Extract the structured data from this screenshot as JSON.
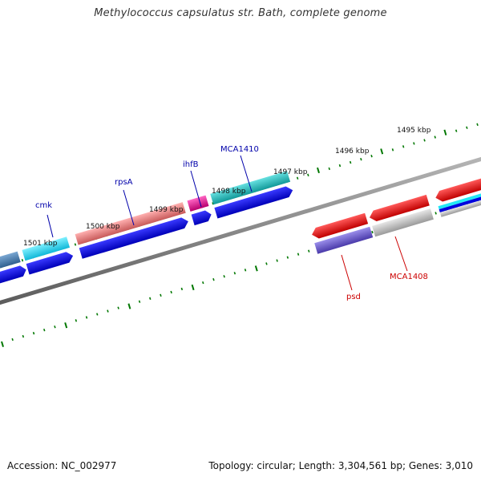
{
  "title": "Methylococcus capsulatus str. Bath, complete genome",
  "footer": {
    "accession": "Accession: NC_002977",
    "summary": "Topology: circular; Length: 3,304,561 bp; Genes: 3,010"
  },
  "kbp_labels": [
    "1501 kbp",
    "1500 kbp",
    "1499 kbp",
    "1498 kbp",
    "1497 kbp",
    "1496 kbp",
    "1495 kbp"
  ],
  "gene_labels": [
    "cmk",
    "rpsA",
    "ihfB",
    "MCA1410",
    "psd",
    "MCA1408"
  ],
  "colors": {
    "forward_label": "#0000aa",
    "reverse_label": "#cc0000",
    "backbone": "#808080",
    "tick": "#007700",
    "cds_blue": "#0000ee",
    "gene_cyan": "#2ad6f0",
    "gene_teal": "#22b8b8",
    "gene_salmon": "#f08080",
    "gene_magenta": "#e0118a",
    "gene_red": "#ee0000",
    "gene_grey": "#c0c0c0",
    "gene_purple": "#6655cc",
    "gene_steel": "#4a7fb0"
  }
}
